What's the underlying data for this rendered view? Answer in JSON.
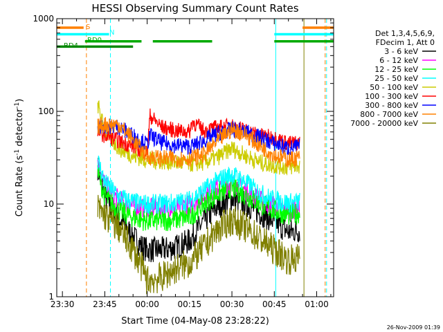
{
  "chart_data": {
    "type": "line",
    "title": "HESSI Observing Summary Count Rates",
    "xlabel": "Start Time (04-May-08 23:28:22)",
    "ylabel": "Count Rate (s",
    "ylabel_sup": "-1",
    "ylabel_rest": " detector",
    "ylabel_end": ")",
    "yscale": "log",
    "ylim": [
      1,
      1000
    ],
    "xlim_min": [
      -2,
      96
    ],
    "x_ticks": [
      {
        "t": 0,
        "label": "23:30"
      },
      {
        "t": 15,
        "label": "23:45"
      },
      {
        "t": 30,
        "label": "00:00"
      },
      {
        "t": 45,
        "label": "00:15"
      },
      {
        "t": 60,
        "label": "00:30"
      },
      {
        "t": 75,
        "label": "00:45"
      },
      {
        "t": 90,
        "label": "01:00"
      }
    ],
    "y_ticks": [
      {
        "v": 1,
        "label": "1"
      },
      {
        "v": 10,
        "label": "10"
      },
      {
        "v": 100,
        "label": "100"
      },
      {
        "v": 1000,
        "label": "1000"
      }
    ],
    "legend_header": [
      "Det 1,3,4,5,6,9,",
      "FDecim 1, Att 0"
    ],
    "legend_placement": "right",
    "series": [
      {
        "name": "3 - 6 keV",
        "color": "#000000",
        "x": [
          12.5,
          15,
          20,
          25,
          28,
          30,
          35,
          40,
          45,
          50,
          55,
          60,
          65,
          70,
          75,
          80,
          84
        ],
        "y": [
          25,
          12,
          7,
          4.5,
          3.5,
          3.2,
          3.2,
          3.4,
          4.0,
          6.5,
          9.5,
          11.5,
          10.0,
          8.0,
          6.5,
          5.0,
          5.2
        ]
      },
      {
        "name": "6 - 12 keV",
        "color": "#ff00ff",
        "x": [
          12.5,
          15,
          20,
          25,
          28,
          30,
          35,
          40,
          45,
          50,
          55,
          60,
          65,
          70,
          75,
          80,
          84
        ],
        "y": [
          28,
          16,
          11,
          9.5,
          9.0,
          9.0,
          9.0,
          9.2,
          9.8,
          12,
          15,
          17,
          14,
          11,
          9.5,
          8.5,
          9.0
        ]
      },
      {
        "name": "12 - 25 keV",
        "color": "#00ff00",
        "x": [
          12.5,
          15,
          20,
          25,
          28,
          30,
          35,
          40,
          45,
          50,
          55,
          60,
          65,
          70,
          75,
          80,
          84
        ],
        "y": [
          22,
          12,
          8.5,
          7.2,
          6.8,
          6.6,
          6.6,
          6.8,
          7.2,
          10,
          13,
          15,
          12.5,
          10,
          8.5,
          7.6,
          8.0
        ]
      },
      {
        "name": "25 - 50 keV",
        "color": "#00ffff",
        "x": [
          12.5,
          15,
          20,
          25,
          28,
          30,
          35,
          40,
          45,
          50,
          55,
          60,
          65,
          70,
          75,
          80,
          84
        ],
        "y": [
          30,
          17,
          12,
          10.5,
          10,
          10,
          10,
          10.3,
          11,
          14,
          18,
          21,
          17,
          13,
          11,
          10.3,
          10.5
        ]
      },
      {
        "name": "50 - 100 keV",
        "color": "#cccc00",
        "x": [
          12.5,
          15,
          20,
          25,
          28,
          30,
          35,
          40,
          45,
          50,
          55,
          60,
          65,
          70,
          75,
          80,
          84
        ],
        "y": [
          120,
          60,
          40,
          33,
          31,
          30,
          29,
          28,
          27,
          28,
          32,
          40,
          33,
          28,
          26,
          25,
          26
        ]
      },
      {
        "name": "100 - 300 keV",
        "color": "#ff0000",
        "x": [
          12.5,
          15,
          20,
          25,
          28,
          30,
          31,
          35,
          40,
          45,
          46,
          50,
          55,
          60,
          65,
          70,
          75,
          80,
          84
        ],
        "y": [
          60,
          55,
          48,
          42,
          38,
          36,
          90,
          68,
          62,
          60,
          78,
          62,
          67,
          70,
          62,
          55,
          52,
          45,
          46
        ]
      },
      {
        "name": "300 - 800 keV",
        "color": "#0000ff",
        "x": [
          12.5,
          15,
          20,
          25,
          28,
          30,
          31,
          35,
          40,
          45,
          46,
          50,
          55,
          60,
          65,
          70,
          75,
          80,
          84
        ],
        "y": [
          70,
          70,
          68,
          55,
          48,
          44,
          55,
          46,
          43,
          42,
          42,
          48,
          58,
          64,
          60,
          52,
          45,
          40,
          42
        ]
      },
      {
        "name": "800 - 7000 keV",
        "color": "#ff8000",
        "x": [
          12.5,
          15,
          20,
          25,
          28,
          30,
          35,
          40,
          45,
          50,
          55,
          60,
          65,
          70,
          75,
          80,
          84
        ],
        "y": [
          68,
          72,
          72,
          50,
          38,
          33,
          31,
          31,
          31,
          34,
          48,
          64,
          56,
          42,
          34,
          30,
          32
        ]
      },
      {
        "name": "7000 - 20000 keV",
        "color": "#808000",
        "x": [
          12.5,
          15,
          20,
          25,
          28,
          30,
          35,
          40,
          45,
          50,
          55,
          60,
          65,
          70,
          75,
          80,
          84
        ],
        "y": [
          9,
          7.5,
          5.5,
          3.2,
          2.1,
          1.5,
          1.6,
          2.0,
          2.3,
          3.4,
          5.3,
          6.8,
          5.5,
          4.2,
          3.2,
          2.5,
          2.6
        ]
      }
    ],
    "overlays": [
      {
        "label": "S",
        "color": "#ff8000",
        "y": 800,
        "segments": [
          [
            -2,
            7.5
          ],
          [
            85,
            96
          ]
        ]
      },
      {
        "label": "N",
        "color": "#00ffff",
        "y": 680,
        "segments": [
          [
            -2,
            16.5
          ],
          [
            75,
            96
          ]
        ]
      },
      {
        "label": "RD0",
        "color": "#00aa00",
        "y": 570,
        "segments": [
          [
            8,
            28
          ],
          [
            32,
            53
          ],
          [
            75,
            96
          ]
        ]
      },
      {
        "label": "RD4",
        "color": "#008800",
        "y": 500,
        "segments": [
          [
            -2,
            8
          ],
          [
            8,
            25
          ]
        ]
      }
    ],
    "vlines": [
      {
        "t": 8.5,
        "color": "#ff8000",
        "dash": true
      },
      {
        "t": 17,
        "color": "#00ffff",
        "dash": true
      },
      {
        "t": 75.5,
        "color": "#00ffff",
        "dash": false
      },
      {
        "t": 85.5,
        "color": "#808000",
        "dash": false
      },
      {
        "t": 93,
        "color": "#ff8000",
        "dash": true
      },
      {
        "t": 93.5,
        "color": "#00ffff",
        "dash": true
      }
    ]
  },
  "footer_date": "26-Nov-2009 01:39"
}
